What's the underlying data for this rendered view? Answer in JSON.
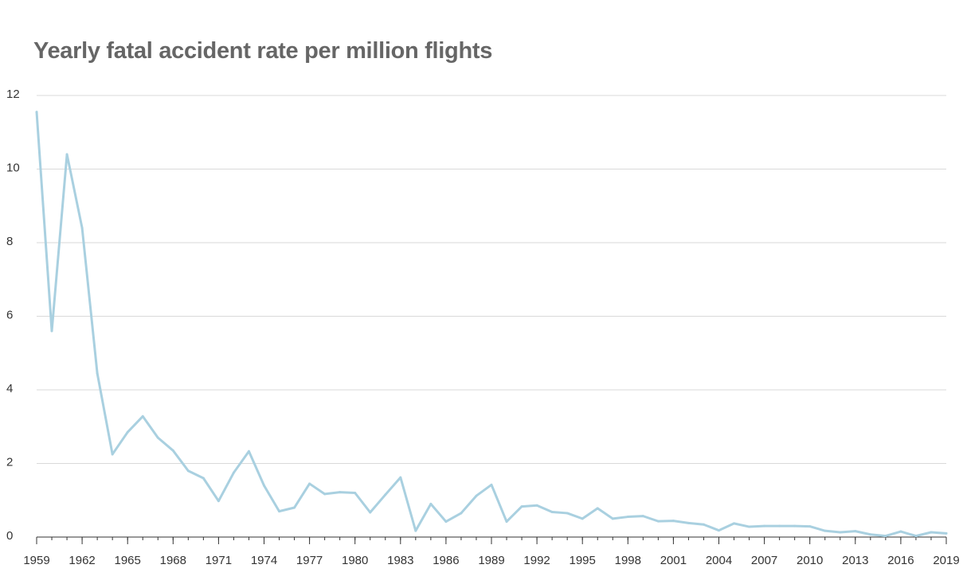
{
  "chart_data": {
    "type": "line",
    "title": "Yearly fatal accident rate per million flights",
    "xlabel": "",
    "ylabel": "",
    "xlim": [
      1959,
      2019
    ],
    "ylim": [
      0,
      12
    ],
    "grid": true,
    "legend": "none",
    "x_ticks": [
      "1959",
      "1962",
      "1965",
      "1968",
      "1971",
      "1974",
      "1977",
      "1980",
      "1983",
      "1986",
      "1989",
      "1992",
      "1995",
      "1998",
      "2001",
      "2004",
      "2007",
      "2010",
      "2013",
      "2016",
      "2019"
    ],
    "y_ticks": [
      "0",
      "2",
      "4",
      "6",
      "8",
      "10",
      "12"
    ],
    "series": [
      {
        "color": "#a9d0e0",
        "x": [
          1959,
          1960,
          1961,
          1962,
          1963,
          1964,
          1965,
          1966,
          1967,
          1968,
          1969,
          1970,
          1971,
          1972,
          1973,
          1974,
          1975,
          1976,
          1977,
          1978,
          1979,
          1980,
          1981,
          1982,
          1983,
          1984,
          1985,
          1986,
          1987,
          1988,
          1989,
          1990,
          1991,
          1992,
          1993,
          1994,
          1995,
          1996,
          1997,
          1998,
          1999,
          2000,
          2001,
          2002,
          2003,
          2004,
          2005,
          2006,
          2007,
          2008,
          2009,
          2010,
          2011,
          2012,
          2013,
          2014,
          2015,
          2016,
          2017,
          2018,
          2019
        ],
        "values": [
          11.55,
          5.6,
          10.4,
          8.4,
          4.45,
          2.25,
          2.85,
          3.28,
          2.7,
          2.35,
          1.8,
          1.6,
          0.98,
          1.75,
          2.33,
          1.4,
          0.7,
          0.8,
          1.45,
          1.17,
          1.22,
          1.2,
          0.67,
          1.15,
          1.62,
          0.17,
          0.9,
          0.42,
          0.65,
          1.12,
          1.42,
          0.42,
          0.83,
          0.86,
          0.68,
          0.65,
          0.5,
          0.78,
          0.5,
          0.55,
          0.57,
          0.43,
          0.44,
          0.38,
          0.34,
          0.18,
          0.37,
          0.28,
          0.3,
          0.3,
          0.3,
          0.29,
          0.17,
          0.13,
          0.16,
          0.07,
          0.03,
          0.15,
          0.03,
          0.13,
          0.1
        ]
      }
    ]
  },
  "colors": {
    "line": "#a9d0e0",
    "grid": "#d9d9d9",
    "axis": "#333333",
    "title": "#666666",
    "tick_text": "#333333"
  }
}
